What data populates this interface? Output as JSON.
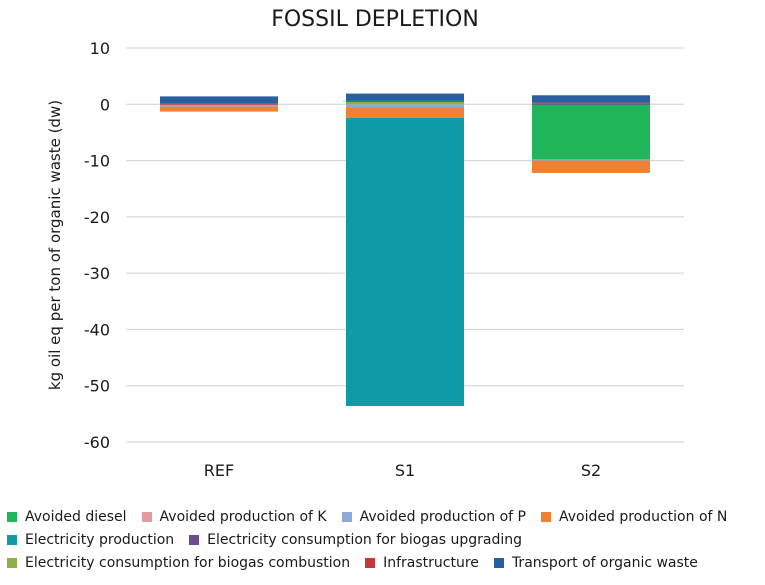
{
  "chart_data": {
    "type": "bar",
    "stacked": true,
    "title": "FOSSIL DEPLETION",
    "xlabel": "",
    "ylabel": "kg oil eq per ton of organic waste (dw)",
    "ylim": [
      -60,
      10
    ],
    "yticks": [
      10,
      0,
      -10,
      -20,
      -30,
      -40,
      -50,
      -60
    ],
    "grid": true,
    "legend_position": "bottom",
    "categories": [
      "REF",
      "S1",
      "S2"
    ],
    "series": [
      {
        "name": "Avoided diesel",
        "color": "#1fb55a",
        "values": [
          0,
          0,
          -9.8
        ]
      },
      {
        "name": "Avoided production of K",
        "color": "#e39a9a",
        "values": [
          0,
          0,
          -0.1
        ]
      },
      {
        "name": "Avoided production of P",
        "color": "#8ea9d8",
        "values": [
          -0.4,
          -0.5,
          -0.1
        ]
      },
      {
        "name": "Avoided production of N",
        "color": "#ee8133",
        "values": [
          -0.9,
          -1.9,
          -2.2
        ]
      },
      {
        "name": "Electricity production",
        "color": "#0e9aa7",
        "values": [
          0,
          -51.2,
          0
        ]
      },
      {
        "name": "Electricity consumption for biogas upgrading",
        "color": "#6d4b8f",
        "values": [
          0,
          0,
          0.1
        ]
      },
      {
        "name": "Electricity consumption for biogas combustion",
        "color": "#8cb04a",
        "values": [
          0,
          0.5,
          0
        ]
      },
      {
        "name": "Infrastructure",
        "color": "#c8383a",
        "values": [
          0.1,
          0.1,
          0.2
        ]
      },
      {
        "name": "Transport of organic waste",
        "color": "#27609f",
        "values": [
          1.3,
          1.3,
          1.3
        ]
      }
    ]
  },
  "legend_rows": [
    [
      0,
      1,
      2,
      3
    ],
    [
      4,
      5
    ],
    [
      6,
      7,
      8
    ]
  ]
}
